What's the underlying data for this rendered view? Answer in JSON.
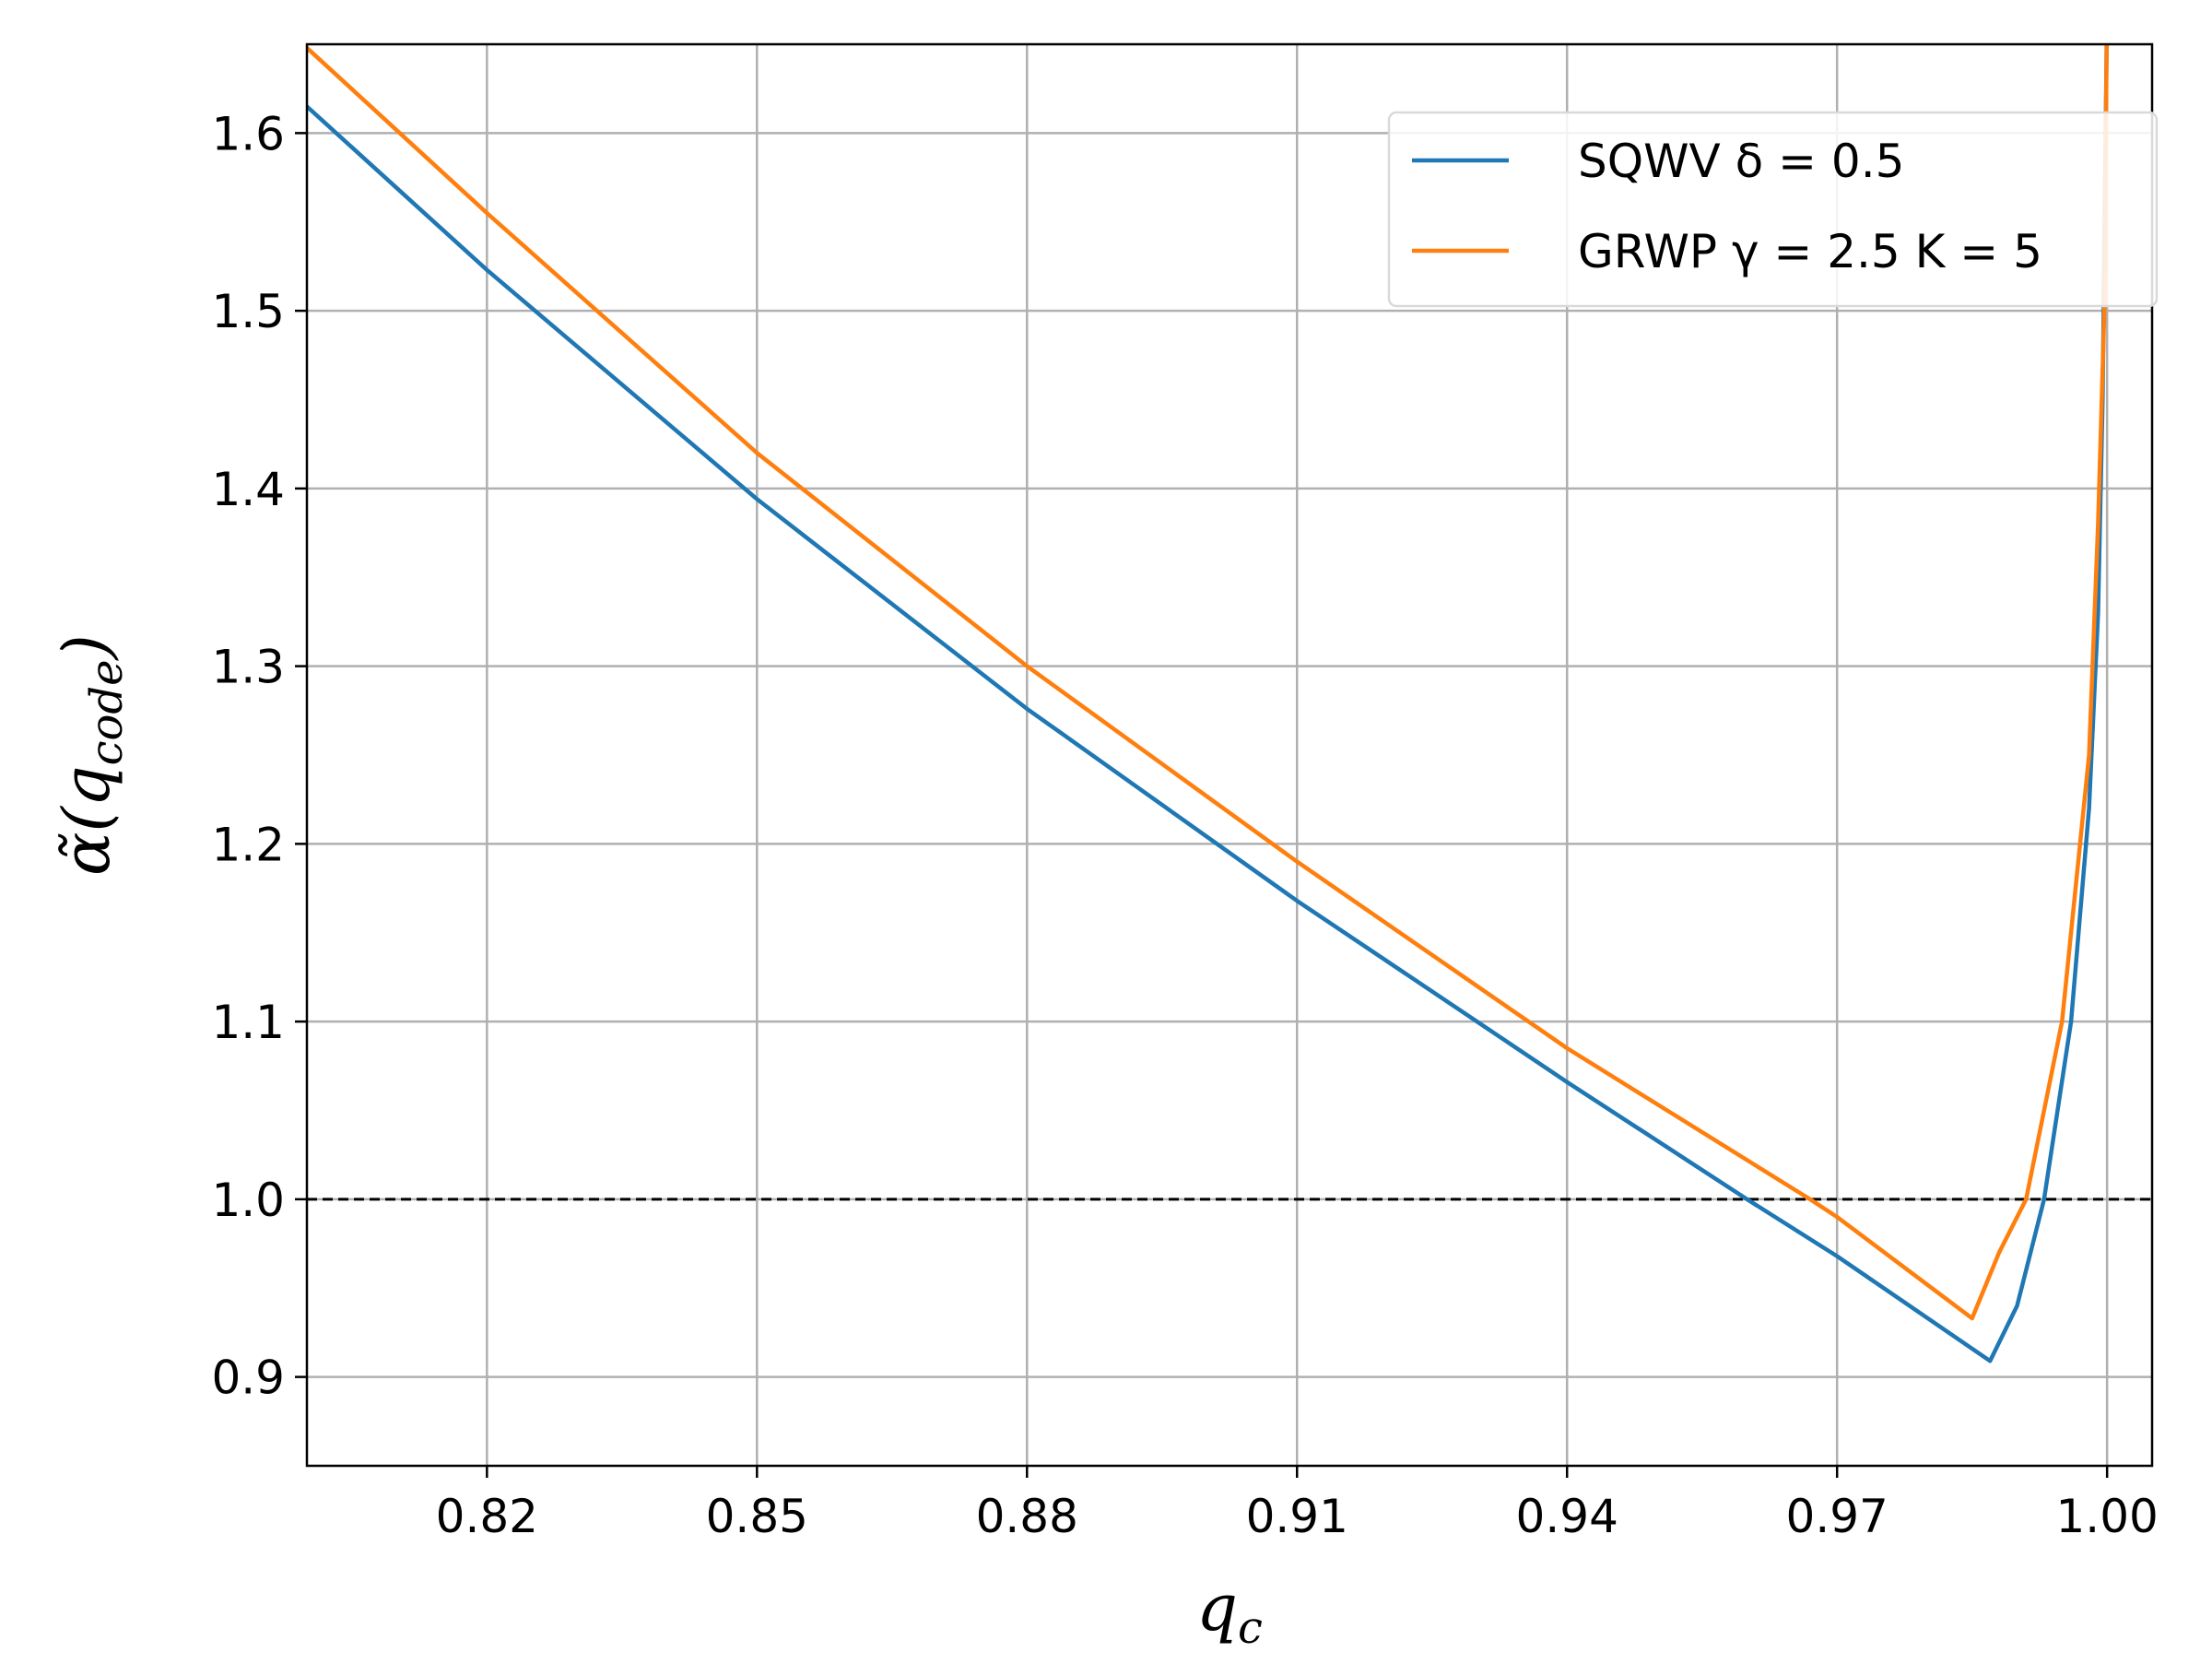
{
  "chart_data": {
    "type": "line",
    "title": "",
    "xlabel": "q_c",
    "ylabel": "α̃(q_code)",
    "xlim": [
      0.8,
      1.005
    ],
    "ylim": [
      0.85,
      1.65
    ],
    "xticks": [
      0.82,
      0.85,
      0.88,
      0.91,
      0.94,
      0.97,
      1.0
    ],
    "xtick_labels": [
      "0.82",
      "0.85",
      "0.88",
      "0.91",
      "0.94",
      "0.97",
      "1.00"
    ],
    "yticks": [
      0.9,
      1.0,
      1.1,
      1.2,
      1.3,
      1.4,
      1.5,
      1.6
    ],
    "ytick_labels": [
      "0.9",
      "1.0",
      "1.1",
      "1.2",
      "1.3",
      "1.4",
      "1.5",
      "1.6"
    ],
    "grid": true,
    "legend_position": "top-right",
    "reference_line": {
      "y": 1.0,
      "style": "dashed",
      "color": "#000000"
    },
    "series": [
      {
        "name": "SQWV δ = 0.5",
        "color": "#1f77b4",
        "x": [
          0.8,
          0.82,
          0.85,
          0.88,
          0.91,
          0.94,
          0.96,
          0.97,
          0.987,
          0.99,
          0.993,
          0.996,
          0.998,
          0.999,
          0.9995,
          0.99995
        ],
        "y": [
          1.615,
          1.523,
          1.394,
          1.276,
          1.168,
          1.066,
          1.0,
          0.968,
          0.909,
          0.94,
          1.0,
          1.1,
          1.22,
          1.33,
          1.45,
          1.65
        ]
      },
      {
        "name": "GRWP γ = 2.5 K = 5",
        "color": "#ff7f0e",
        "x": [
          0.8,
          0.82,
          0.85,
          0.88,
          0.91,
          0.94,
          0.967,
          0.97,
          0.985,
          0.988,
          0.991,
          0.995,
          0.998,
          0.999,
          0.9997,
          0.99995
        ],
        "y": [
          1.648,
          1.555,
          1.42,
          1.3,
          1.19,
          1.085,
          1.0,
          0.99,
          0.933,
          0.97,
          1.0,
          1.1,
          1.25,
          1.38,
          1.5,
          1.65
        ]
      }
    ]
  }
}
